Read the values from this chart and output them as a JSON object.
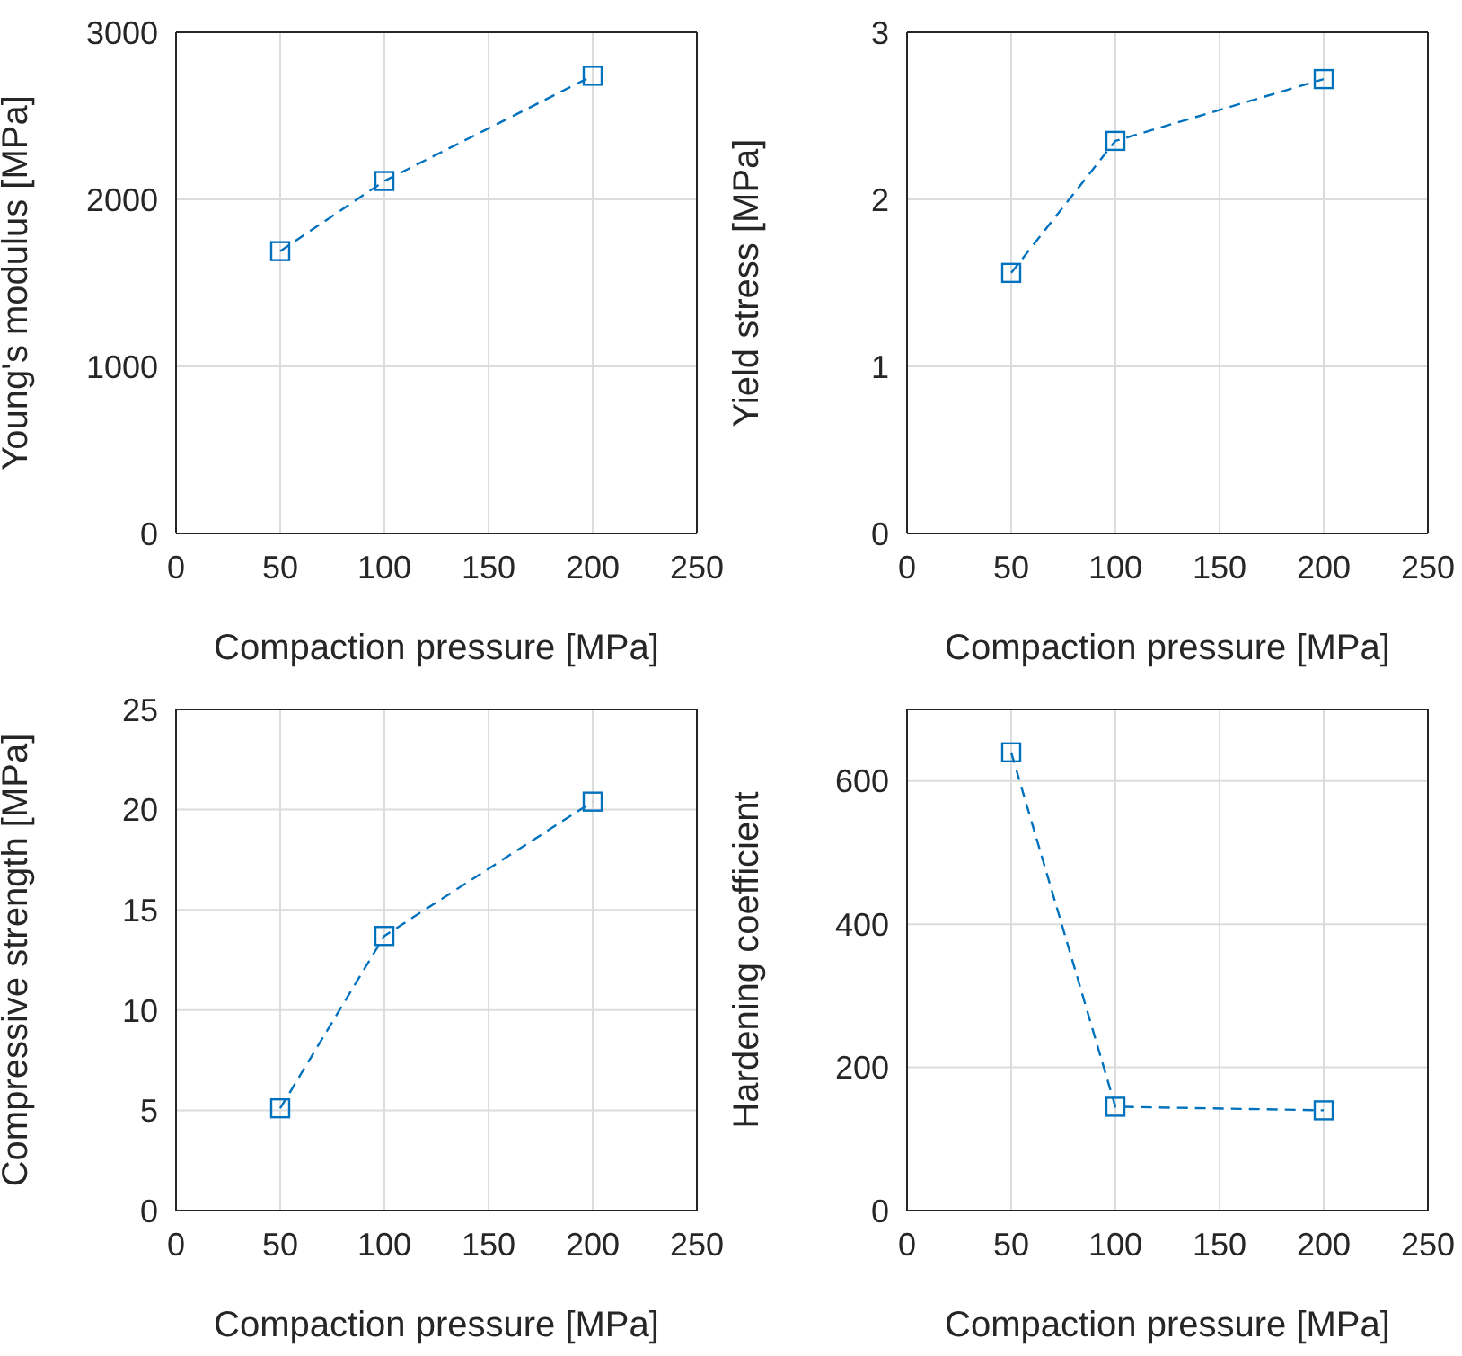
{
  "chart_data": [
    {
      "type": "line",
      "xlabel": "Compaction pressure [MPa]",
      "ylabel": "Young's modulus [MPa]",
      "x": [
        50,
        100,
        200
      ],
      "values": [
        1690,
        2110,
        2740
      ],
      "color": "#0072bd",
      "xlim": [
        0,
        250
      ],
      "xticks": [
        0,
        50,
        100,
        150,
        200,
        250
      ],
      "ylim": [
        0,
        3000
      ],
      "yticks": [
        0,
        1000,
        2000,
        3000
      ],
      "grid": true,
      "marker": "square",
      "line_style": "dashed"
    },
    {
      "type": "line",
      "xlabel": "Compaction pressure [MPa]",
      "ylabel": "Yield stress [MPa]",
      "x": [
        50,
        100,
        200
      ],
      "values": [
        1.56,
        2.35,
        2.72
      ],
      "color": "#0072bd",
      "xlim": [
        0,
        250
      ],
      "xticks": [
        0,
        50,
        100,
        150,
        200,
        250
      ],
      "ylim": [
        0,
        3
      ],
      "yticks": [
        0,
        1,
        2,
        3
      ],
      "grid": true,
      "marker": "square",
      "line_style": "dashed"
    },
    {
      "type": "line",
      "xlabel": "Compaction pressure [MPa]",
      "ylabel": "Compressive strength [MPa]",
      "x": [
        50,
        100,
        200
      ],
      "values": [
        5.1,
        13.7,
        20.4
      ],
      "color": "#0072bd",
      "xlim": [
        0,
        250
      ],
      "xticks": [
        0,
        50,
        100,
        150,
        200,
        250
      ],
      "ylim": [
        0,
        25
      ],
      "yticks": [
        0,
        5,
        10,
        15,
        20,
        25
      ],
      "grid": true,
      "marker": "square",
      "line_style": "dashed"
    },
    {
      "type": "line",
      "xlabel": "Compaction pressure [MPa]",
      "ylabel": "Hardening coefficient",
      "x": [
        50,
        100,
        200
      ],
      "values": [
        640,
        145,
        140
      ],
      "color": "#0072bd",
      "xlim": [
        0,
        250
      ],
      "xticks": [
        0,
        50,
        100,
        150,
        200,
        250
      ],
      "ylim": [
        0,
        700
      ],
      "yticks": [
        0,
        200,
        400,
        600
      ],
      "grid": true,
      "marker": "square",
      "line_style": "dashed"
    }
  ]
}
